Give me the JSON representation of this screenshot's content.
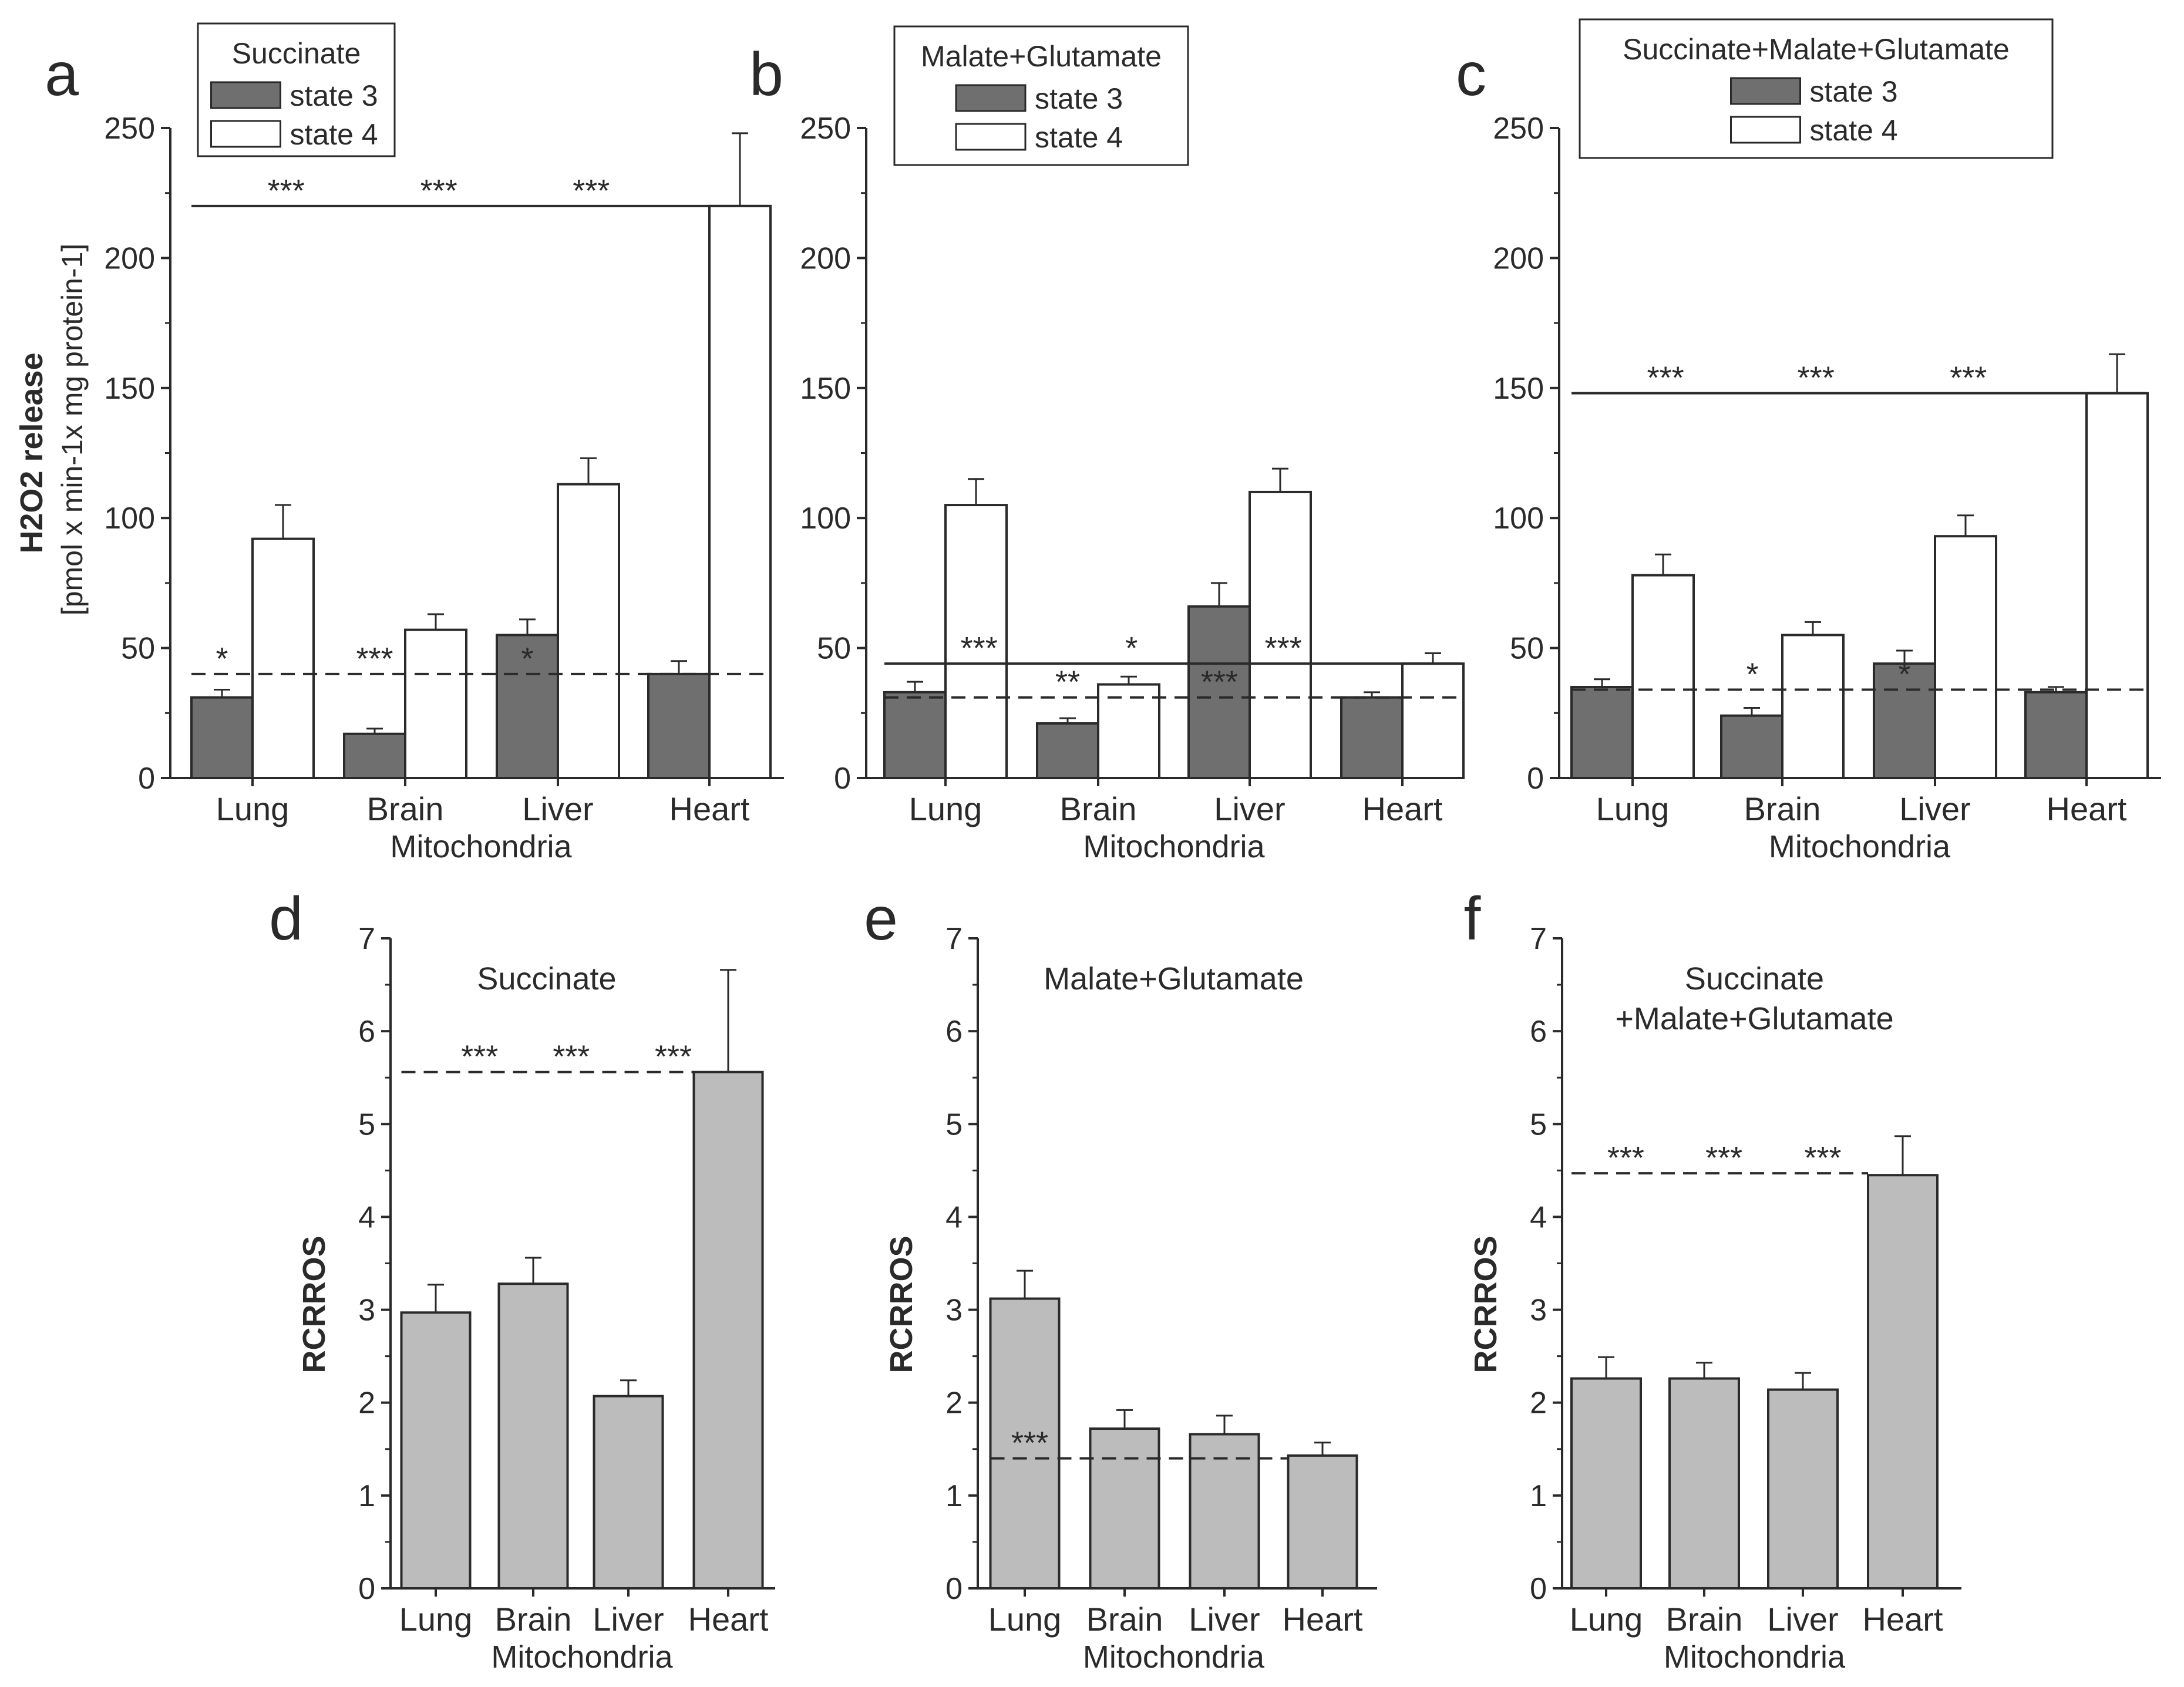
{
  "colors": {
    "state3": "#6f6f6f",
    "state4": "#ffffff",
    "rcr": "#bcbcbc",
    "axis": "#2a2a2a"
  },
  "chart_data": [
    {
      "panel": "a",
      "type": "bar",
      "legend_title": "Succinate",
      "categories": [
        "Lung",
        "Brain",
        "Liver",
        "Heart"
      ],
      "series": [
        {
          "name": "state 3",
          "values": [
            31,
            17,
            55,
            40
          ],
          "errors": [
            3,
            2,
            6,
            5
          ]
        },
        {
          "name": "state 4",
          "values": [
            92,
            57,
            113,
            220
          ],
          "errors": [
            13,
            6,
            10,
            28
          ]
        }
      ],
      "xlabel": "Mitochondria",
      "ylabel": "H2O2  release",
      "ylabel_units": "[pmol x min-1x mg protein-1]",
      "ylim": [
        0,
        250
      ],
      "yticks": [
        0,
        50,
        100,
        150,
        200,
        250
      ],
      "solid_line": {
        "y": 220,
        "from_cat": 0,
        "labels": [
          {
            "text": "***",
            "cat": 0.22
          },
          {
            "text": "***",
            "cat": 1.22
          },
          {
            "text": "***",
            "cat": 2.22
          }
        ]
      },
      "dashed_line": {
        "y": 40,
        "from_cat": 0,
        "labels": [
          {
            "text": "*",
            "cat": -0.2
          },
          {
            "text": "***",
            "cat": 0.8
          },
          {
            "text": "*",
            "cat": 1.8
          }
        ]
      }
    },
    {
      "panel": "b",
      "type": "bar",
      "legend_title": "Malate+Glutamate",
      "categories": [
        "Lung",
        "Brain",
        "Liver",
        "Heart"
      ],
      "series": [
        {
          "name": "state 3",
          "values": [
            33,
            21,
            66,
            31
          ],
          "errors": [
            4,
            2,
            9,
            2
          ]
        },
        {
          "name": "state 4",
          "values": [
            105,
            36,
            110,
            44
          ],
          "errors": [
            10,
            3,
            9,
            4
          ]
        }
      ],
      "xlabel": "Mitochondria",
      "ylim": [
        0,
        250
      ],
      "yticks": [
        0,
        50,
        100,
        150,
        200,
        250
      ],
      "solid_line": {
        "y": 44,
        "from_cat": 0,
        "labels": [
          {
            "text": "***",
            "cat": 0.22
          },
          {
            "text": "*",
            "cat": 1.22
          },
          {
            "text": "***",
            "cat": 2.22
          }
        ]
      },
      "dashed_line": {
        "y": 31,
        "from_cat": 0,
        "labels": [
          {
            "text": "**",
            "cat": 0.8
          },
          {
            "text": "***",
            "cat": 1.8
          }
        ]
      }
    },
    {
      "panel": "c",
      "type": "bar",
      "legend_title": "Succinate+Malate+Glutamate",
      "categories": [
        "Lung",
        "Brain",
        "Liver",
        "Heart"
      ],
      "series": [
        {
          "name": "state 3",
          "values": [
            35,
            24,
            44,
            33
          ],
          "errors": [
            3,
            3,
            5,
            2
          ]
        },
        {
          "name": "state 4",
          "values": [
            78,
            55,
            93,
            148
          ],
          "errors": [
            8,
            5,
            8,
            15
          ]
        }
      ],
      "xlabel": "Mitochondria",
      "ylim": [
        0,
        250
      ],
      "yticks": [
        0,
        50,
        100,
        150,
        200,
        250
      ],
      "solid_line": {
        "y": 148,
        "from_cat": 0,
        "labels": [
          {
            "text": "***",
            "cat": 0.22
          },
          {
            "text": "***",
            "cat": 1.22
          },
          {
            "text": "***",
            "cat": 2.22
          }
        ]
      },
      "dashed_line": {
        "y": 34,
        "from_cat": 0,
        "labels": [
          {
            "text": "*",
            "cat": 0.8
          },
          {
            "text": "*",
            "cat": 1.8
          }
        ]
      }
    },
    {
      "panel": "d",
      "type": "bar",
      "subtitle": [
        "Succinate"
      ],
      "categories": [
        "Lung",
        "Brain",
        "Liver",
        "Heart"
      ],
      "series": [
        {
          "name": "RCR",
          "values": [
            2.97,
            3.28,
            2.07,
            5.56
          ],
          "errors": [
            0.3,
            0.28,
            0.17,
            1.1
          ]
        }
      ],
      "xlabel": "Mitochondria",
      "ylabel": "RCRROS",
      "ylim": [
        0,
        7
      ],
      "yticks": [
        0,
        1,
        2,
        3,
        4,
        5,
        6,
        7
      ],
      "dashed_line": {
        "y": 5.56,
        "from_cat": 0,
        "labels": [
          {
            "text": "***",
            "cat": 0.45
          },
          {
            "text": "***",
            "cat": 1.4
          },
          {
            "text": "***",
            "cat": 2.45
          }
        ]
      }
    },
    {
      "panel": "e",
      "type": "bar",
      "subtitle": [
        "Malate+Glutamate"
      ],
      "categories": [
        "Lung",
        "Brain",
        "Liver",
        "Heart"
      ],
      "series": [
        {
          "name": "RCR",
          "values": [
            3.12,
            1.72,
            1.66,
            1.43
          ],
          "errors": [
            0.3,
            0.2,
            0.2,
            0.14
          ]
        }
      ],
      "xlabel": "Mitochondria",
      "ylabel": "RCRROS",
      "ylim": [
        0,
        7
      ],
      "yticks": [
        0,
        1,
        2,
        3,
        4,
        5,
        6,
        7
      ],
      "dashed_line": {
        "y": 1.4,
        "from_cat": 0,
        "labels": [
          {
            "text": "***",
            "cat": 0.05
          }
        ]
      }
    },
    {
      "panel": "f",
      "type": "bar",
      "subtitle": [
        "Succinate",
        "+Malate+Glutamate"
      ],
      "categories": [
        "Lung",
        "Brain",
        "Liver",
        "Heart"
      ],
      "series": [
        {
          "name": "RCR",
          "values": [
            2.26,
            2.26,
            2.14,
            4.45
          ],
          "errors": [
            0.23,
            0.17,
            0.18,
            0.42
          ]
        }
      ],
      "xlabel": "Mitochondria",
      "ylabel": "RCRROS",
      "ylim": [
        0,
        7
      ],
      "yticks": [
        0,
        1,
        2,
        3,
        4,
        5,
        6,
        7
      ],
      "dashed_line": {
        "y": 4.47,
        "from_cat": 0,
        "labels": [
          {
            "text": "***",
            "cat": 0.2
          },
          {
            "text": "***",
            "cat": 1.2
          },
          {
            "text": "***",
            "cat": 2.2
          }
        ]
      }
    }
  ]
}
